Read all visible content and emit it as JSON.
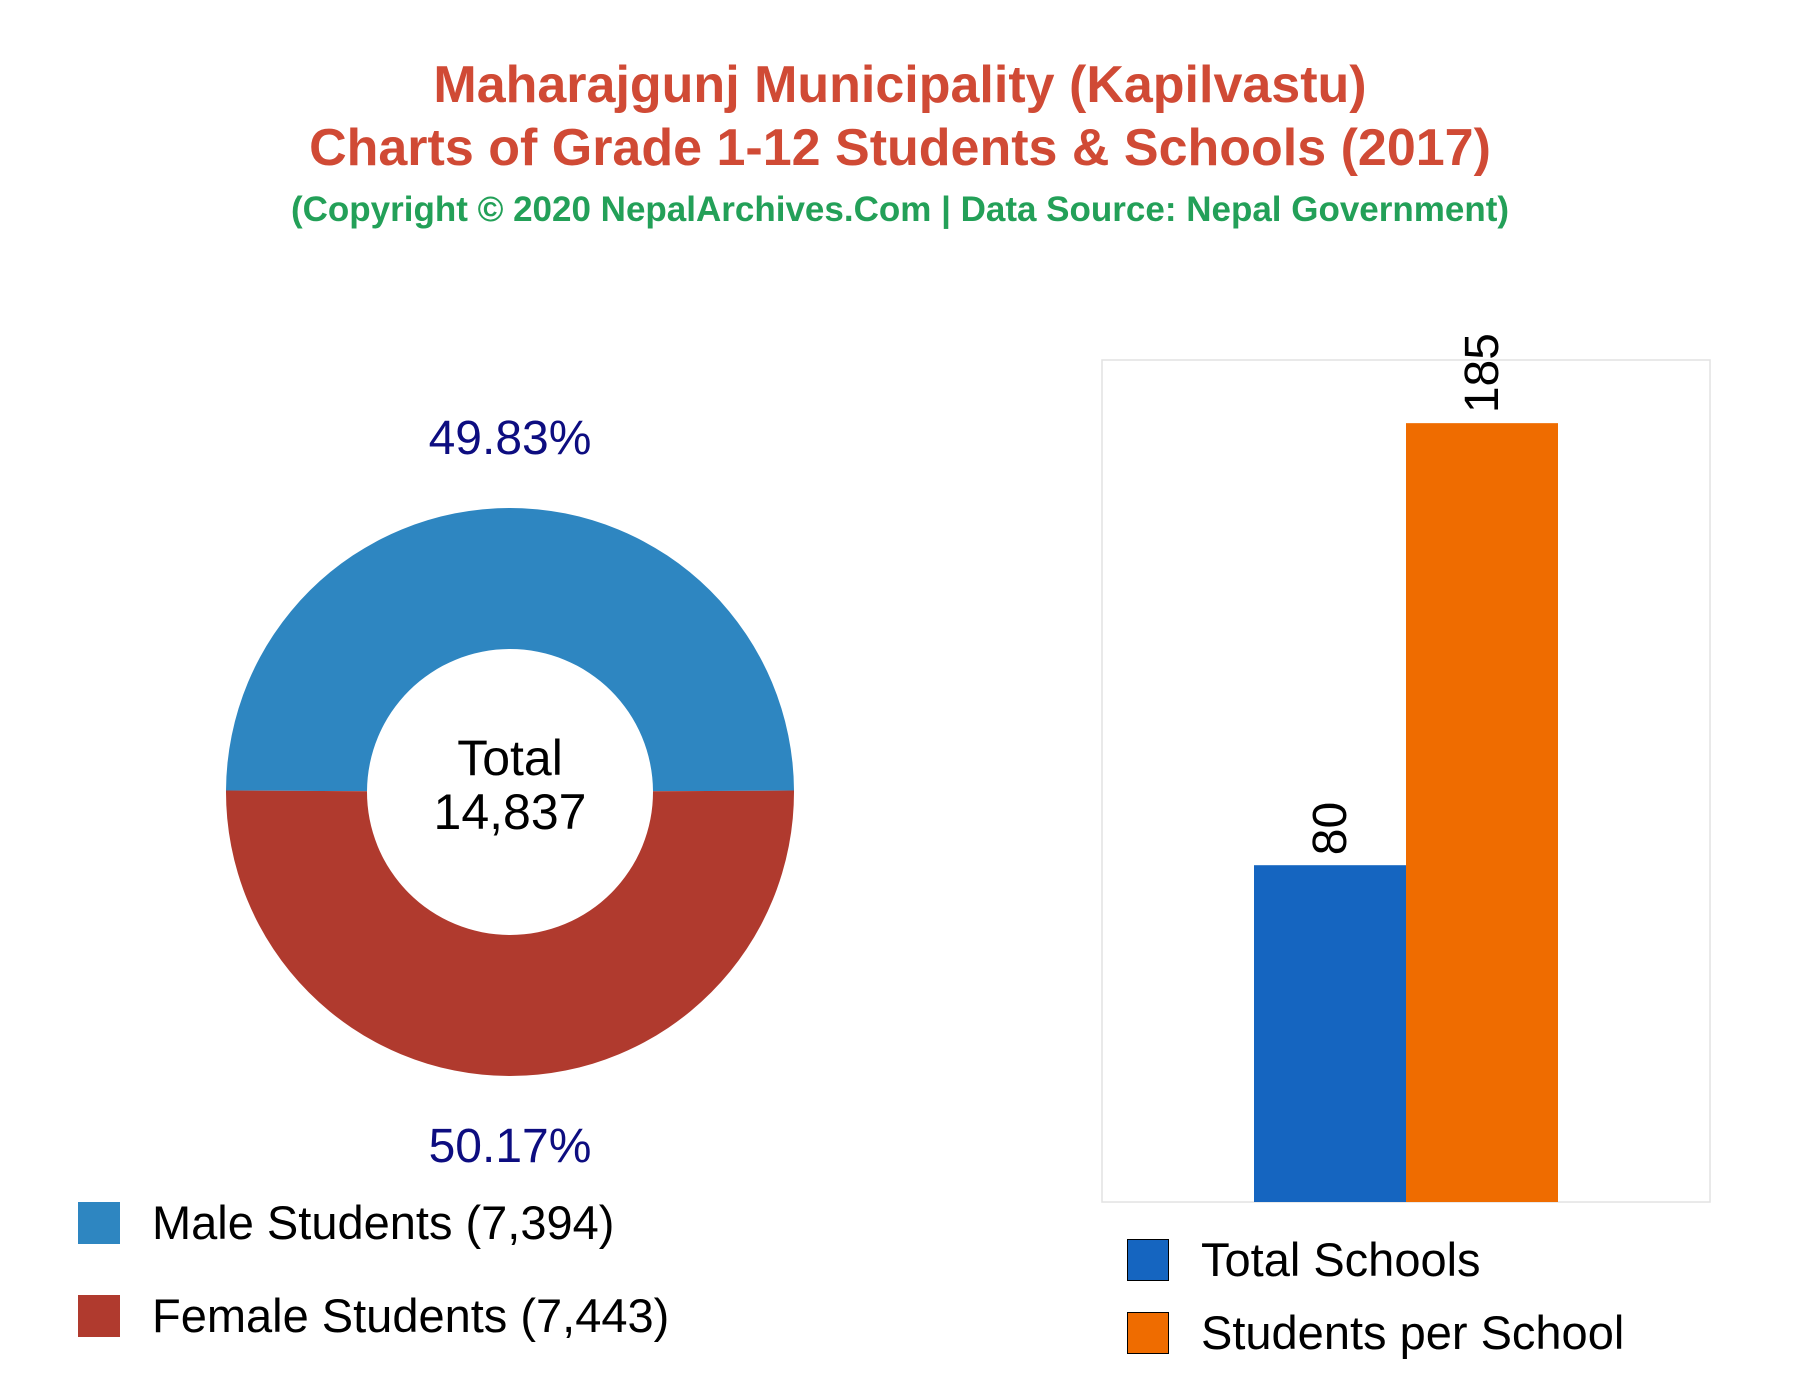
{
  "title_line1": "Maharajgunj Municipality (Kapilvastu)",
  "title_line2": "Charts of Grade 1-12 Students & Schools (2017)",
  "copyright": "(Copyright © 2020 NepalArchives.Com | Data Source: Nepal Government)",
  "colors": {
    "male": "#2e86c1",
    "female": "#b03a2e",
    "schools": "#1565c0",
    "per_school": "#ef6c00",
    "pct_label": "#0d0d80",
    "title": "#d04a35",
    "copyright": "#23a058"
  },
  "chart_data": [
    {
      "type": "pie",
      "donut": true,
      "center_label": "Total",
      "center_value": "14,837",
      "slices": [
        {
          "name": "Male Students (7,394)",
          "value": 7394,
          "percent_label": "49.83%"
        },
        {
          "name": "Female Students (7,443)",
          "value": 7443,
          "percent_label": "50.17%"
        }
      ],
      "legend_placement": "bottom-left"
    },
    {
      "type": "bar",
      "series": [
        {
          "name": "Total Schools",
          "value": 80,
          "label": "80"
        },
        {
          "name": "Students per School",
          "value": 185,
          "label": "185"
        }
      ],
      "ylim": [
        0,
        200
      ],
      "grid": false,
      "legend_placement": "bottom"
    }
  ]
}
